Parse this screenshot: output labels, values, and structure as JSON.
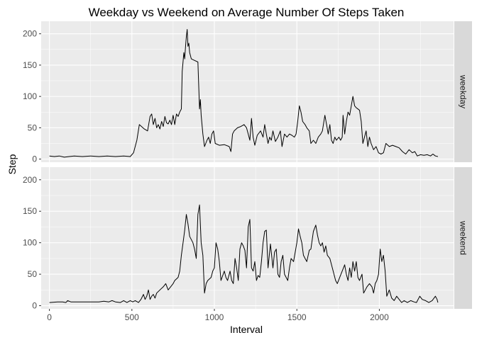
{
  "chart_data": {
    "type": "line",
    "title": "Weekday vs Weekend on Average Number Of Steps Taken",
    "xlabel": "Interval",
    "ylabel": "Step",
    "xlim": [
      -50,
      2450
    ],
    "ylim": [
      -5,
      220
    ],
    "x_ticks": [
      0,
      500,
      1000,
      1500,
      2000
    ],
    "y_ticks": [
      0,
      50,
      100,
      150,
      200
    ],
    "grid": true,
    "facets": [
      {
        "label": "weekday",
        "points": [
          [
            0,
            5
          ],
          [
            30,
            4
          ],
          [
            60,
            5
          ],
          [
            90,
            3
          ],
          [
            120,
            4
          ],
          [
            150,
            5
          ],
          [
            200,
            4
          ],
          [
            250,
            5
          ],
          [
            300,
            4
          ],
          [
            350,
            5
          ],
          [
            400,
            4
          ],
          [
            450,
            5
          ],
          [
            490,
            4
          ],
          [
            510,
            10
          ],
          [
            530,
            30
          ],
          [
            545,
            55
          ],
          [
            575,
            48
          ],
          [
            595,
            45
          ],
          [
            610,
            68
          ],
          [
            620,
            72
          ],
          [
            630,
            55
          ],
          [
            640,
            65
          ],
          [
            650,
            50
          ],
          [
            660,
            55
          ],
          [
            670,
            48
          ],
          [
            680,
            60
          ],
          [
            690,
            52
          ],
          [
            700,
            68
          ],
          [
            710,
            58
          ],
          [
            720,
            56
          ],
          [
            730,
            62
          ],
          [
            740,
            55
          ],
          [
            750,
            70
          ],
          [
            760,
            55
          ],
          [
            770,
            72
          ],
          [
            780,
            68
          ],
          [
            790,
            75
          ],
          [
            800,
            80
          ],
          [
            805,
            140
          ],
          [
            815,
            170
          ],
          [
            820,
            160
          ],
          [
            825,
            180
          ],
          [
            830,
            195
          ],
          [
            835,
            207
          ],
          [
            840,
            180
          ],
          [
            845,
            185
          ],
          [
            850,
            170
          ],
          [
            860,
            160
          ],
          [
            875,
            158
          ],
          [
            900,
            155
          ],
          [
            910,
            80
          ],
          [
            915,
            95
          ],
          [
            920,
            70
          ],
          [
            930,
            40
          ],
          [
            940,
            20
          ],
          [
            955,
            30
          ],
          [
            965,
            35
          ],
          [
            975,
            25
          ],
          [
            985,
            40
          ],
          [
            995,
            45
          ],
          [
            1005,
            25
          ],
          [
            1030,
            22
          ],
          [
            1060,
            23
          ],
          [
            1090,
            20
          ],
          [
            1100,
            12
          ],
          [
            1110,
            40
          ],
          [
            1120,
            45
          ],
          [
            1140,
            50
          ],
          [
            1160,
            52
          ],
          [
            1180,
            55
          ],
          [
            1195,
            50
          ],
          [
            1200,
            45
          ],
          [
            1215,
            30
          ],
          [
            1225,
            65
          ],
          [
            1235,
            35
          ],
          [
            1245,
            22
          ],
          [
            1260,
            38
          ],
          [
            1280,
            45
          ],
          [
            1295,
            35
          ],
          [
            1305,
            55
          ],
          [
            1315,
            40
          ],
          [
            1325,
            25
          ],
          [
            1335,
            35
          ],
          [
            1345,
            30
          ],
          [
            1355,
            45
          ],
          [
            1370,
            28
          ],
          [
            1385,
            35
          ],
          [
            1400,
            45
          ],
          [
            1410,
            20
          ],
          [
            1425,
            40
          ],
          [
            1440,
            35
          ],
          [
            1455,
            40
          ],
          [
            1470,
            38
          ],
          [
            1485,
            35
          ],
          [
            1495,
            40
          ],
          [
            1505,
            60
          ],
          [
            1515,
            85
          ],
          [
            1525,
            75
          ],
          [
            1535,
            60
          ],
          [
            1550,
            55
          ],
          [
            1560,
            50
          ],
          [
            1575,
            45
          ],
          [
            1585,
            25
          ],
          [
            1600,
            30
          ],
          [
            1615,
            25
          ],
          [
            1630,
            35
          ],
          [
            1645,
            40
          ],
          [
            1655,
            45
          ],
          [
            1670,
            70
          ],
          [
            1680,
            55
          ],
          [
            1690,
            40
          ],
          [
            1700,
            55
          ],
          [
            1710,
            30
          ],
          [
            1720,
            25
          ],
          [
            1730,
            35
          ],
          [
            1740,
            30
          ],
          [
            1755,
            35
          ],
          [
            1765,
            30
          ],
          [
            1775,
            35
          ],
          [
            1780,
            70
          ],
          [
            1790,
            40
          ],
          [
            1800,
            60
          ],
          [
            1810,
            75
          ],
          [
            1820,
            70
          ],
          [
            1830,
            85
          ],
          [
            1840,
            100
          ],
          [
            1850,
            85
          ],
          [
            1860,
            82
          ],
          [
            1870,
            80
          ],
          [
            1880,
            78
          ],
          [
            1890,
            60
          ],
          [
            1900,
            25
          ],
          [
            1910,
            35
          ],
          [
            1920,
            45
          ],
          [
            1930,
            20
          ],
          [
            1940,
            35
          ],
          [
            1950,
            25
          ],
          [
            1965,
            15
          ],
          [
            1980,
            20
          ],
          [
            1995,
            10
          ],
          [
            2010,
            8
          ],
          [
            2025,
            10
          ],
          [
            2040,
            25
          ],
          [
            2060,
            20
          ],
          [
            2080,
            22
          ],
          [
            2100,
            20
          ],
          [
            2120,
            18
          ],
          [
            2140,
            12
          ],
          [
            2160,
            8
          ],
          [
            2180,
            15
          ],
          [
            2200,
            10
          ],
          [
            2215,
            12
          ],
          [
            2230,
            5
          ],
          [
            2250,
            7
          ],
          [
            2270,
            6
          ],
          [
            2290,
            7
          ],
          [
            2310,
            5
          ],
          [
            2325,
            8
          ],
          [
            2340,
            5
          ],
          [
            2355,
            4
          ]
        ]
      },
      {
        "label": "weekend",
        "points": [
          [
            0,
            5
          ],
          [
            50,
            6
          ],
          [
            80,
            6
          ],
          [
            100,
            5
          ],
          [
            110,
            8
          ],
          [
            130,
            6
          ],
          [
            160,
            6
          ],
          [
            200,
            6
          ],
          [
            250,
            6
          ],
          [
            300,
            6
          ],
          [
            330,
            7
          ],
          [
            360,
            6
          ],
          [
            380,
            8
          ],
          [
            400,
            6
          ],
          [
            430,
            5
          ],
          [
            450,
            8
          ],
          [
            470,
            5
          ],
          [
            490,
            8
          ],
          [
            505,
            6
          ],
          [
            520,
            8
          ],
          [
            540,
            5
          ],
          [
            555,
            10
          ],
          [
            570,
            18
          ],
          [
            580,
            10
          ],
          [
            590,
            15
          ],
          [
            600,
            25
          ],
          [
            610,
            10
          ],
          [
            620,
            15
          ],
          [
            630,
            18
          ],
          [
            640,
            12
          ],
          [
            650,
            20
          ],
          [
            670,
            25
          ],
          [
            690,
            30
          ],
          [
            705,
            35
          ],
          [
            720,
            25
          ],
          [
            735,
            30
          ],
          [
            750,
            35
          ],
          [
            760,
            40
          ],
          [
            780,
            45
          ],
          [
            790,
            55
          ],
          [
            800,
            80
          ],
          [
            810,
            100
          ],
          [
            820,
            120
          ],
          [
            830,
            145
          ],
          [
            840,
            130
          ],
          [
            850,
            110
          ],
          [
            860,
            105
          ],
          [
            870,
            100
          ],
          [
            880,
            90
          ],
          [
            890,
            75
          ],
          [
            900,
            145
          ],
          [
            910,
            160
          ],
          [
            920,
            100
          ],
          [
            930,
            80
          ],
          [
            940,
            20
          ],
          [
            950,
            35
          ],
          [
            960,
            40
          ],
          [
            980,
            45
          ],
          [
            990,
            55
          ],
          [
            1000,
            60
          ],
          [
            1010,
            100
          ],
          [
            1020,
            90
          ],
          [
            1030,
            70
          ],
          [
            1040,
            40
          ],
          [
            1060,
            55
          ],
          [
            1070,
            45
          ],
          [
            1080,
            40
          ],
          [
            1095,
            55
          ],
          [
            1105,
            40
          ],
          [
            1115,
            35
          ],
          [
            1125,
            75
          ],
          [
            1135,
            60
          ],
          [
            1145,
            40
          ],
          [
            1155,
            90
          ],
          [
            1165,
            100
          ],
          [
            1175,
            95
          ],
          [
            1185,
            88
          ],
          [
            1195,
            60
          ],
          [
            1205,
            125
          ],
          [
            1215,
            137
          ],
          [
            1225,
            60
          ],
          [
            1235,
            55
          ],
          [
            1245,
            70
          ],
          [
            1255,
            40
          ],
          [
            1265,
            48
          ],
          [
            1275,
            45
          ],
          [
            1285,
            70
          ],
          [
            1295,
            100
          ],
          [
            1305,
            118
          ],
          [
            1315,
            120
          ],
          [
            1325,
            60
          ],
          [
            1340,
            98
          ],
          [
            1355,
            60
          ],
          [
            1365,
            85
          ],
          [
            1375,
            90
          ],
          [
            1385,
            50
          ],
          [
            1395,
            45
          ],
          [
            1405,
            70
          ],
          [
            1415,
            80
          ],
          [
            1425,
            50
          ],
          [
            1435,
            45
          ],
          [
            1445,
            40
          ],
          [
            1455,
            60
          ],
          [
            1465,
            75
          ],
          [
            1480,
            70
          ],
          [
            1490,
            85
          ],
          [
            1500,
            100
          ],
          [
            1510,
            122
          ],
          [
            1520,
            110
          ],
          [
            1530,
            100
          ],
          [
            1540,
            80
          ],
          [
            1550,
            75
          ],
          [
            1560,
            70
          ],
          [
            1575,
            88
          ],
          [
            1585,
            90
          ],
          [
            1600,
            118
          ],
          [
            1615,
            128
          ],
          [
            1625,
            112
          ],
          [
            1635,
            100
          ],
          [
            1645,
            95
          ],
          [
            1655,
            100
          ],
          [
            1665,
            85
          ],
          [
            1675,
            95
          ],
          [
            1685,
            80
          ],
          [
            1700,
            75
          ],
          [
            1715,
            60
          ],
          [
            1725,
            50
          ],
          [
            1735,
            40
          ],
          [
            1745,
            35
          ],
          [
            1760,
            45
          ],
          [
            1775,
            55
          ],
          [
            1790,
            65
          ],
          [
            1800,
            50
          ],
          [
            1810,
            40
          ],
          [
            1820,
            60
          ],
          [
            1830,
            45
          ],
          [
            1840,
            70
          ],
          [
            1850,
            55
          ],
          [
            1860,
            70
          ],
          [
            1870,
            45
          ],
          [
            1880,
            40
          ],
          [
            1895,
            50
          ],
          [
            1905,
            20
          ],
          [
            1915,
            25
          ],
          [
            1925,
            30
          ],
          [
            1940,
            35
          ],
          [
            1955,
            30
          ],
          [
            1965,
            20
          ],
          [
            1975,
            35
          ],
          [
            1985,
            40
          ],
          [
            1995,
            50
          ],
          [
            2005,
            90
          ],
          [
            2015,
            70
          ],
          [
            2025,
            80
          ],
          [
            2035,
            55
          ],
          [
            2045,
            15
          ],
          [
            2060,
            25
          ],
          [
            2075,
            12
          ],
          [
            2090,
            8
          ],
          [
            2105,
            15
          ],
          [
            2120,
            10
          ],
          [
            2135,
            5
          ],
          [
            2150,
            8
          ],
          [
            2170,
            5
          ],
          [
            2190,
            8
          ],
          [
            2210,
            6
          ],
          [
            2225,
            5
          ],
          [
            2245,
            15
          ],
          [
            2260,
            10
          ],
          [
            2280,
            8
          ],
          [
            2300,
            5
          ],
          [
            2320,
            8
          ],
          [
            2340,
            15
          ],
          [
            2350,
            10
          ],
          [
            2355,
            5
          ]
        ]
      }
    ]
  }
}
